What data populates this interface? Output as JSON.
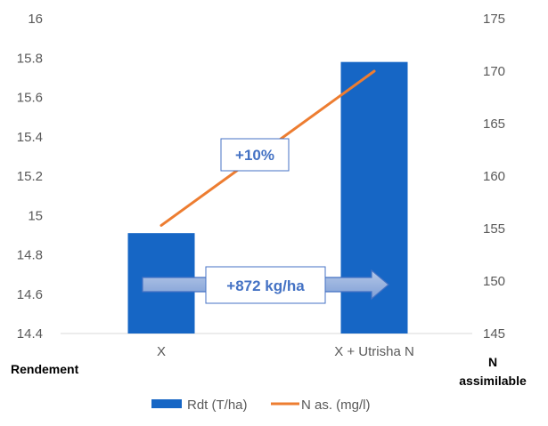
{
  "chart_data": {
    "type": "bar",
    "categories": [
      "X",
      "X + Utrisha N"
    ],
    "series": [
      {
        "name": "Rdt (T/ha)",
        "kind": "bar",
        "axis": "left",
        "values": [
          14.91,
          15.78
        ]
      },
      {
        "name": "N as. (mg/l)",
        "kind": "line",
        "axis": "right",
        "values": [
          155.3,
          170.0
        ]
      }
    ],
    "y_left": {
      "label": "Rendement",
      "min": 14.4,
      "max": 16,
      "step": 0.2,
      "ticks": [
        "14.4",
        "14.6",
        "14.8",
        "15",
        "15.2",
        "15.4",
        "15.6",
        "15.8",
        "16"
      ]
    },
    "y_right": {
      "label_line1": "N",
      "label_line2": "assimilable",
      "min": 145,
      "max": 175,
      "step": 5,
      "ticks": [
        "145",
        "150",
        "155",
        "160",
        "165",
        "170",
        "175"
      ]
    },
    "annotations": {
      "n_increase": "+10%",
      "yield_increase": "+872 kg/ha"
    },
    "legend_position": "bottom",
    "grid": false,
    "colors": {
      "bar": "#1666C5",
      "line": "#ED7D31",
      "arrow": "#8FAADC",
      "annotation_text": "#4472C4"
    }
  }
}
